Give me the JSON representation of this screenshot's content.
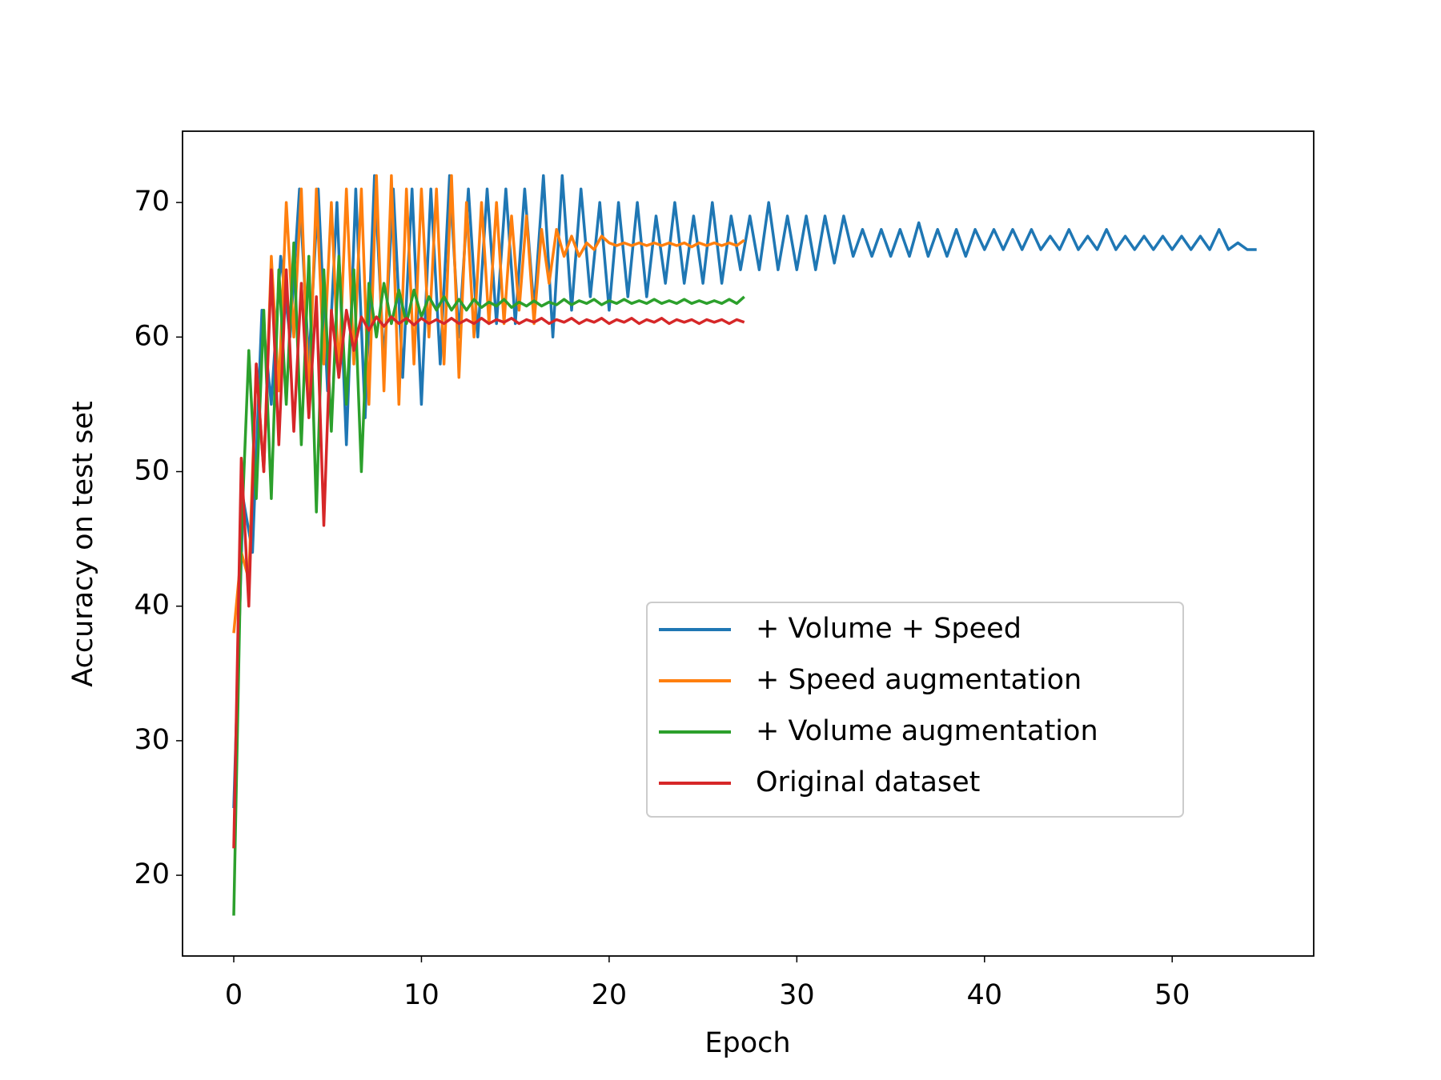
{
  "chart_data": {
    "type": "line",
    "xlabel": "Epoch",
    "ylabel": "Accuracy on test set",
    "xlim": [
      -2.73,
      57.54
    ],
    "ylim": [
      14.0,
      75.3
    ],
    "xticks": [
      0,
      10,
      20,
      30,
      40,
      50
    ],
    "yticks": [
      20,
      30,
      40,
      50,
      60,
      70
    ],
    "legend_loc": "center right",
    "series": [
      {
        "name": "+ Volume + Speed",
        "color": "#1f77b4",
        "x": [
          0,
          0.5,
          1,
          1.5,
          2,
          2.5,
          3,
          3.5,
          4,
          4.5,
          5,
          5.5,
          6,
          6.5,
          7,
          7.5,
          8,
          8.5,
          9,
          9.5,
          10,
          10.5,
          11,
          11.5,
          12,
          12.5,
          13,
          13.5,
          14,
          14.5,
          15,
          15.5,
          16,
          16.5,
          17,
          17.5,
          18,
          18.5,
          19,
          19.5,
          20,
          20.5,
          21,
          21.5,
          22,
          22.5,
          23,
          23.5,
          24,
          24.5,
          25,
          25.5,
          26,
          26.5,
          27,
          27.5,
          28,
          28.5,
          29,
          29.5,
          30,
          30.5,
          31,
          31.5,
          32,
          32.5,
          33,
          33.5,
          34,
          34.5,
          35,
          35.5,
          36,
          36.5,
          37,
          37.5,
          38,
          38.5,
          39,
          39.5,
          40,
          40.5,
          41,
          41.5,
          42,
          42.5,
          43,
          43.5,
          44,
          44.5,
          45,
          45.5,
          46,
          46.5,
          47,
          47.5,
          48,
          48.5,
          49,
          49.5,
          50,
          50.5,
          51,
          51.5,
          52,
          52.5,
          53,
          53.5,
          54,
          54.5
        ],
        "values": [
          25,
          48,
          44,
          62,
          55,
          66,
          60,
          71,
          58,
          71,
          56,
          70,
          52,
          71,
          54,
          72,
          58,
          71,
          57,
          71,
          55,
          71,
          58,
          72,
          60,
          71,
          60,
          71,
          61,
          71,
          61,
          71,
          62,
          72,
          60,
          72,
          62,
          71,
          63,
          70,
          62,
          70,
          63,
          70,
          63,
          69,
          64,
          70,
          64,
          69,
          64,
          70,
          64,
          69,
          65,
          69,
          65,
          70,
          65,
          69,
          65,
          69,
          65,
          69,
          65.5,
          69,
          66,
          68,
          66,
          68,
          66,
          68,
          66,
          68.5,
          66,
          68,
          66,
          68,
          66,
          68,
          66.5,
          68,
          66.5,
          68,
          66.5,
          68,
          66.5,
          67.5,
          66.5,
          68,
          66.5,
          67.5,
          66.5,
          68,
          66.5,
          67.5,
          66.5,
          67.5,
          66.5,
          67.5,
          66.5,
          67.5,
          66.5,
          67.5,
          66.5,
          68,
          66.5,
          67,
          66.5,
          66.5
        ]
      },
      {
        "name": "+ Speed augmentation",
        "color": "#ff7f0e",
        "x": [
          0,
          0.4,
          0.8,
          1.2,
          1.6,
          2.0,
          2.4,
          2.8,
          3.2,
          3.6,
          4.0,
          4.4,
          4.8,
          5.2,
          5.6,
          6.0,
          6.4,
          6.8,
          7.2,
          7.6,
          8.0,
          8.4,
          8.8,
          9.2,
          9.6,
          10.0,
          10.4,
          10.8,
          11.2,
          11.6,
          12.0,
          12.4,
          12.8,
          13.2,
          13.6,
          14.0,
          14.4,
          14.8,
          15.2,
          15.6,
          16.0,
          16.4,
          16.8,
          17.2,
          17.6,
          18.0,
          18.4,
          18.8,
          19.2,
          19.6,
          20.0,
          20.4,
          20.8,
          21.2,
          21.6,
          22.0,
          22.4,
          22.8,
          23.2,
          23.6,
          24.0,
          24.4,
          24.8,
          25.2,
          25.6,
          26.0,
          26.4,
          26.8,
          27.2
        ],
        "values": [
          38,
          44,
          42,
          58,
          50,
          66,
          56,
          70,
          60,
          71,
          55,
          71,
          58,
          70,
          57,
          71,
          58,
          71,
          55,
          72,
          56,
          72,
          55,
          71,
          58,
          71,
          60,
          71,
          58,
          72,
          57,
          70,
          60,
          70,
          61,
          70,
          61,
          69,
          62,
          69,
          61,
          68,
          64,
          68,
          66,
          67.5,
          66,
          67,
          66.5,
          67.5,
          67,
          66.8,
          67,
          66.8,
          67,
          66.8,
          67,
          66.8,
          67,
          66.8,
          67,
          66.7,
          67,
          66.8,
          67,
          66.8,
          67,
          66.8,
          67.2
        ]
      },
      {
        "name": "+ Volume augmentation",
        "color": "#2ca02c",
        "x": [
          0,
          0.4,
          0.8,
          1.2,
          1.6,
          2.0,
          2.4,
          2.8,
          3.2,
          3.6,
          4.0,
          4.4,
          4.8,
          5.2,
          5.6,
          6.0,
          6.4,
          6.8,
          7.2,
          7.6,
          8.0,
          8.4,
          8.8,
          9.2,
          9.6,
          10.0,
          10.4,
          10.8,
          11.2,
          11.6,
          12.0,
          12.4,
          12.8,
          13.2,
          13.6,
          14.0,
          14.4,
          14.8,
          15.2,
          15.6,
          16.0,
          16.4,
          16.8,
          17.2,
          17.6,
          18.0,
          18.4,
          18.8,
          19.2,
          19.6,
          20.0,
          20.4,
          20.8,
          21.2,
          21.6,
          22.0,
          22.4,
          22.8,
          23.2,
          23.6,
          24.0,
          24.4,
          24.8,
          25.2,
          25.6,
          26.0,
          26.4,
          26.8,
          27.2
        ],
        "values": [
          17,
          45,
          59,
          48,
          62,
          48,
          65,
          55,
          67,
          52,
          66,
          47,
          65,
          53,
          66,
          55,
          65,
          50,
          64,
          60,
          64,
          61,
          63.5,
          61,
          63.5,
          61.5,
          63,
          62,
          63,
          62,
          62.8,
          62,
          62.8,
          62.2,
          62.6,
          62.3,
          62.8,
          62.2,
          62.6,
          62.3,
          62.7,
          62.3,
          62.6,
          62.4,
          62.8,
          62.4,
          62.7,
          62.5,
          62.8,
          62.4,
          62.7,
          62.5,
          62.8,
          62.5,
          62.7,
          62.5,
          62.8,
          62.5,
          62.7,
          62.5,
          62.8,
          62.5,
          62.7,
          62.5,
          62.7,
          62.5,
          62.8,
          62.5,
          63
        ]
      },
      {
        "name": "Original dataset",
        "color": "#d62728",
        "x": [
          0,
          0.4,
          0.8,
          1.2,
          1.6,
          2.0,
          2.4,
          2.8,
          3.2,
          3.6,
          4.0,
          4.4,
          4.8,
          5.2,
          5.6,
          6.0,
          6.4,
          6.8,
          7.2,
          7.6,
          8.0,
          8.4,
          8.8,
          9.2,
          9.6,
          10.0,
          10.4,
          10.8,
          11.2,
          11.6,
          12.0,
          12.4,
          12.8,
          13.2,
          13.6,
          14.0,
          14.4,
          14.8,
          15.2,
          15.6,
          16.0,
          16.4,
          16.8,
          17.2,
          17.6,
          18.0,
          18.4,
          18.8,
          19.2,
          19.6,
          20.0,
          20.4,
          20.8,
          21.2,
          21.6,
          22.0,
          22.4,
          22.8,
          23.2,
          23.6,
          24.0,
          24.4,
          24.8,
          25.2,
          25.6,
          26.0,
          26.4,
          26.8,
          27.2
        ],
        "values": [
          22,
          51,
          40,
          58,
          50,
          65,
          52,
          65,
          53,
          64,
          54,
          63,
          46,
          62,
          57,
          62,
          59,
          61.5,
          60.5,
          61.5,
          60.8,
          61.5,
          61,
          61.4,
          60.9,
          61.4,
          61,
          61.3,
          61,
          61.4,
          61,
          61.3,
          61,
          61.4,
          61,
          61.3,
          61.1,
          61.4,
          61,
          61.3,
          61.1,
          61.4,
          61,
          61.3,
          61.1,
          61.4,
          61,
          61.3,
          61.1,
          61.4,
          61,
          61.3,
          61.1,
          61.4,
          61,
          61.3,
          61.1,
          61.4,
          61,
          61.3,
          61.1,
          61.3,
          61,
          61.3,
          61.1,
          61.3,
          61,
          61.3,
          61.1
        ]
      }
    ]
  }
}
